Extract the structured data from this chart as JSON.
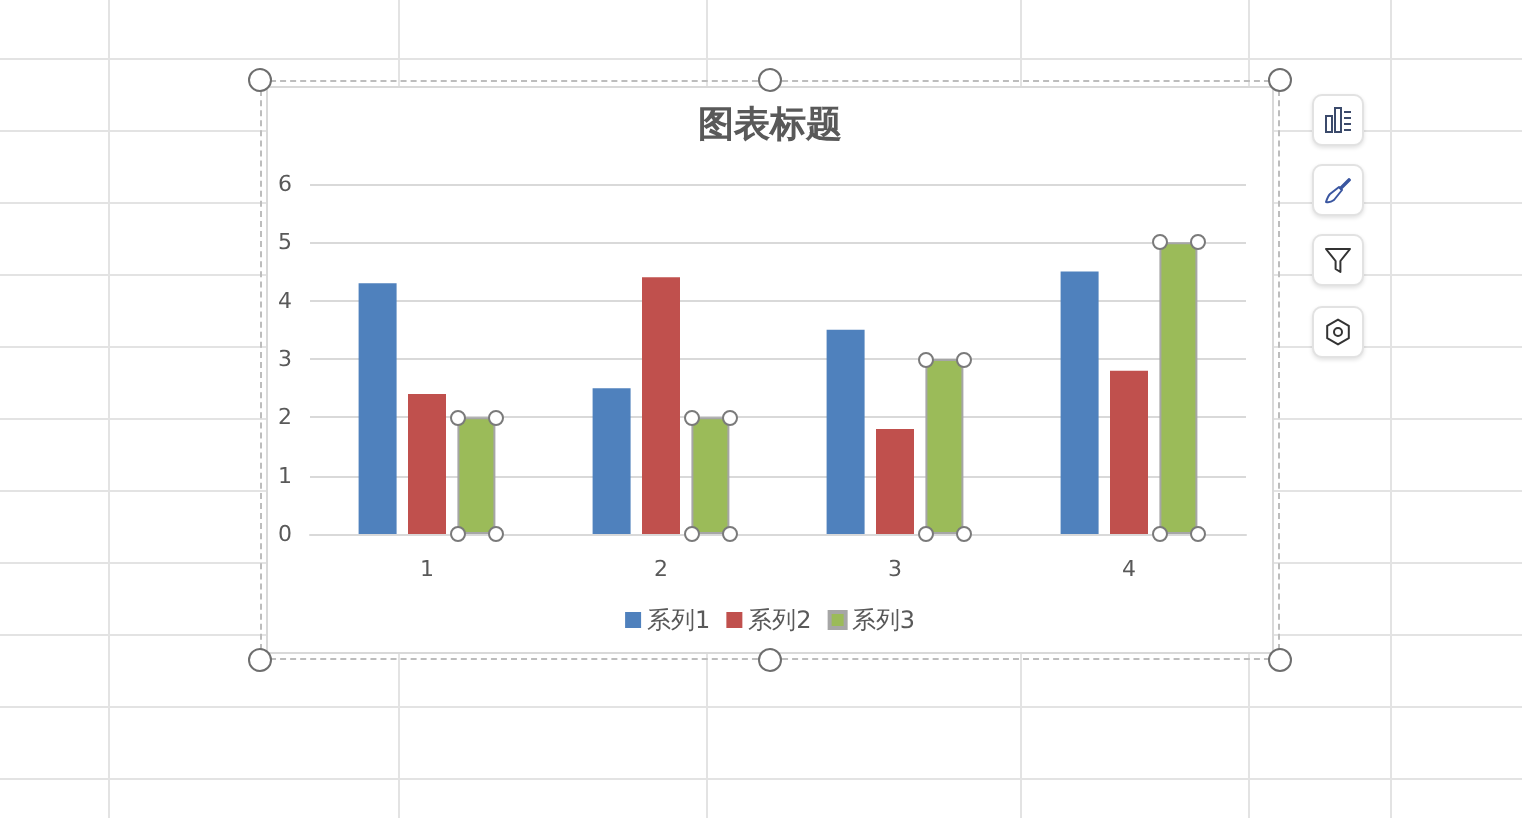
{
  "chart_data": {
    "type": "bar",
    "title": "图表标题",
    "categories": [
      "1",
      "2",
      "3",
      "4"
    ],
    "series": [
      {
        "name": "系列1",
        "color": "#4f81bd",
        "values": [
          4.3,
          2.5,
          3.5,
          4.5
        ]
      },
      {
        "name": "系列2",
        "color": "#c0504d",
        "values": [
          2.4,
          4.4,
          1.8,
          2.8
        ]
      },
      {
        "name": "系列3",
        "color": "#9bbb59",
        "values": [
          2,
          2,
          3,
          5
        ]
      }
    ],
    "ylim": [
      0,
      6
    ],
    "yticks": [
      0,
      1,
      2,
      3,
      4,
      5,
      6
    ],
    "grid": "y",
    "legend": "bottom"
  }
}
